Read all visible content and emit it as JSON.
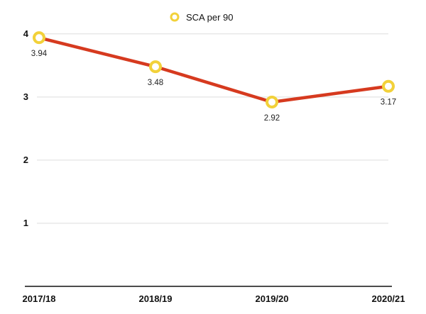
{
  "chart_data": {
    "type": "line",
    "categories": [
      "2017/18",
      "2018/19",
      "2019/20",
      "2020/21"
    ],
    "series": [
      {
        "name": "SCA per 90",
        "values": [
          3.94,
          3.48,
          2.92,
          3.17
        ]
      }
    ],
    "data_labels": [
      "3.94",
      "3.48",
      "2.92",
      "3.17"
    ],
    "y_ticks": [
      "1",
      "2",
      "3",
      "4"
    ],
    "ylim": [
      0,
      4.2
    ],
    "grid": true,
    "legend": "top-center",
    "colors": {
      "line": "#d63a1f",
      "marker": "#f2d13a",
      "grid": "#dddddd",
      "axis": "#111111"
    }
  }
}
